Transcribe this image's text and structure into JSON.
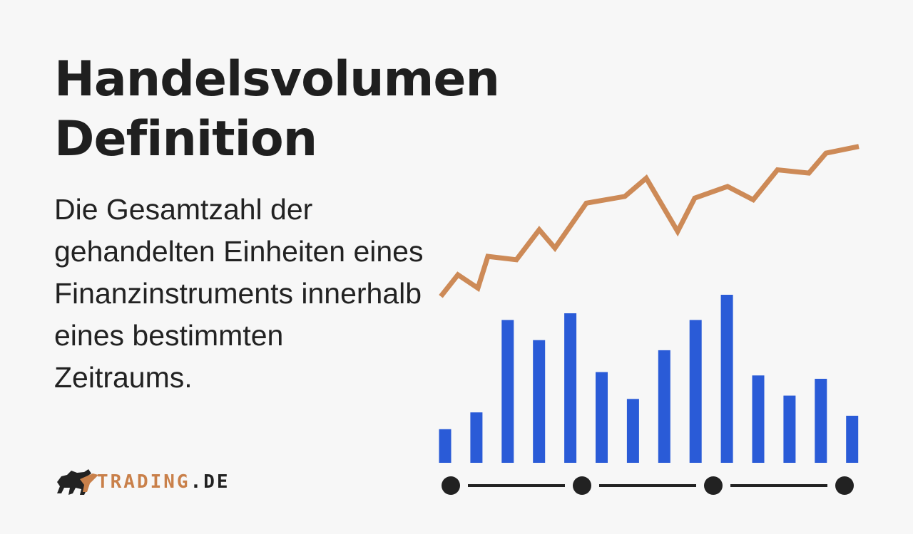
{
  "heading": {
    "line1": "Handelsvolumen",
    "line2": "Definition"
  },
  "description": "Die Gesamtzahl der gehandelten Einheiten eines Finanzinstruments innerhalb eines bestimmten Zeitraums.",
  "logo": {
    "part1": "TRADING",
    "part2": ".DE",
    "icon": "bull-icon"
  },
  "colors": {
    "background": "#f7f7f7",
    "text": "#1f1f1f",
    "line": "#cd8a57",
    "bars": "#2a5bd7",
    "timeline": "#222222",
    "brand": "#c9804a"
  },
  "chart_data": {
    "type": "bar",
    "bars": [
      20,
      30,
      85,
      73,
      89,
      54,
      38,
      67,
      85,
      100,
      52,
      40,
      50,
      28
    ],
    "line": [
      5,
      18,
      10,
      29,
      27,
      45,
      34,
      61,
      65,
      76,
      44,
      64,
      71,
      63,
      81,
      79,
      91,
      95
    ],
    "timeline_points": 4
  }
}
